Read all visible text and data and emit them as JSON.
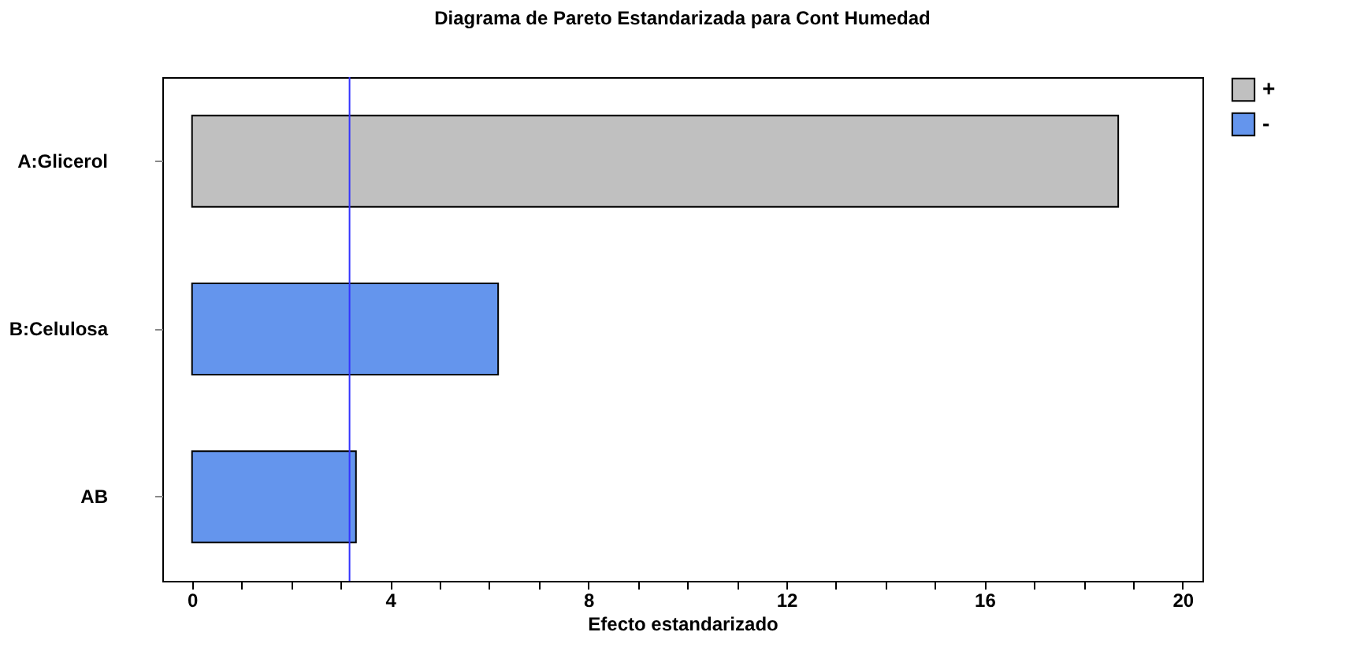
{
  "chart_data": {
    "type": "bar",
    "orientation": "horizontal",
    "title": "Diagrama de Pareto Estandarizada para Cont Humedad",
    "xlabel": "Efecto estandarizado",
    "categories": [
      "A:Glicerol",
      "B:Celulosa",
      "AB"
    ],
    "series": [
      {
        "name": "+",
        "color": "#c0c0c0",
        "values": [
          18.7,
          null,
          null
        ]
      },
      {
        "name": "-",
        "color": "#6495ed",
        "values": [
          null,
          6.18,
          3.31
        ]
      }
    ],
    "xlim": [
      -0.6,
      20.4
    ],
    "xticks": [
      0,
      {
        "value": 1,
        "label": null
      },
      {
        "value": 2,
        "label": null
      },
      {
        "value": 3,
        "label": null
      },
      4,
      {
        "value": 5,
        "label": null
      },
      {
        "value": 6,
        "label": null
      },
      {
        "value": 7,
        "label": null
      },
      8,
      {
        "value": 9,
        "label": null
      },
      {
        "value": 10,
        "label": null
      },
      {
        "value": 11,
        "label": null
      },
      12,
      {
        "value": 13,
        "label": null
      },
      {
        "value": 14,
        "label": null
      },
      {
        "value": 15,
        "label": null
      },
      16,
      {
        "value": 17,
        "label": null
      },
      {
        "value": 18,
        "label": null
      },
      {
        "value": 19,
        "label": null
      },
      20
    ],
    "ref_lines": [
      {
        "axis": "x",
        "value": 3.18,
        "color": "#3333ff"
      }
    ],
    "legend": "top right",
    "grid": false
  }
}
